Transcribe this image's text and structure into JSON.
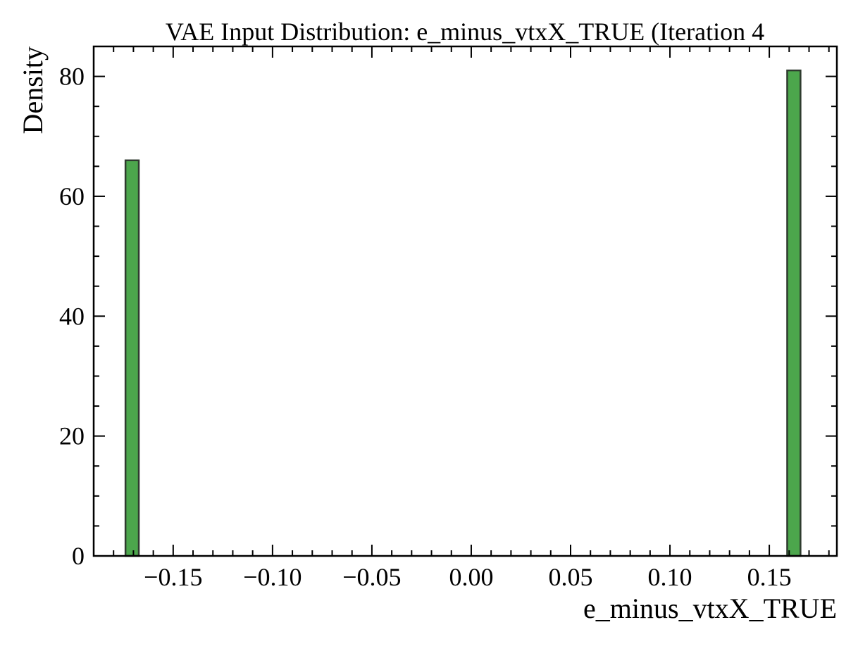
{
  "chart_data": {
    "type": "bar",
    "title": "VAE Input Distribution: e_minus_vtxX_TRUE (Iteration 4",
    "xlabel": "e_minus_vtxX_TRUE",
    "ylabel": "Density",
    "xlim": [
      -0.19,
      0.184
    ],
    "ylim": [
      0,
      85
    ],
    "x_ticks": [
      -0.15,
      -0.1,
      -0.05,
      0.0,
      0.05,
      0.1,
      0.15
    ],
    "x_tick_labels": [
      "−0.15",
      "−0.10",
      "−0.05",
      "0.00",
      "0.05",
      "0.10",
      "0.15"
    ],
    "y_ticks": [
      0,
      20,
      40,
      60,
      80
    ],
    "y_tick_labels": [
      "0",
      "20",
      "40",
      "60",
      "80"
    ],
    "bins": [
      {
        "x0": -0.174,
        "x1": -0.1673,
        "value": 66
      },
      {
        "x0": 0.159,
        "x1": 0.1657,
        "value": 81
      }
    ],
    "grid": false,
    "colors": {
      "bar_fill": "#4ca64c",
      "bar_edge": "#2f3a2f",
      "axis": "#000000"
    }
  }
}
